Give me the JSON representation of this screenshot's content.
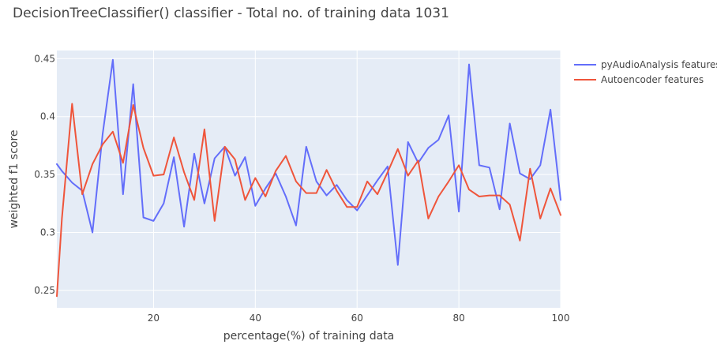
{
  "chart_data": {
    "type": "line",
    "title": "DecisionTreeClassifier() classifier - Total no. of training data 1031",
    "xlabel": "percentage(%) of training data",
    "ylabel": "weighted f1 score",
    "xlim": [
      1,
      100
    ],
    "ylim": [
      0.235,
      0.457
    ],
    "xticks": [
      20,
      40,
      60,
      80,
      100
    ],
    "yticks": [
      0.25,
      0.3,
      0.35,
      0.4,
      0.45
    ],
    "ytick_labels": [
      "0.25",
      "0.3",
      "0.35",
      "0.4",
      "0.45"
    ],
    "grid": true,
    "legend_position": "top-right, outside plot",
    "plot_background": "#e5ecf6",
    "series": [
      {
        "name": "pyAudioAnalysis features",
        "color": "#636efa",
        "x": [
          1,
          2,
          4,
          6,
          8,
          10,
          12,
          14,
          16,
          18,
          20,
          22,
          24,
          26,
          28,
          30,
          32,
          34,
          36,
          38,
          40,
          42,
          44,
          46,
          48,
          50,
          52,
          54,
          56,
          58,
          60,
          62,
          64,
          66,
          68,
          70,
          72,
          74,
          76,
          78,
          80,
          82,
          84,
          86,
          88,
          90,
          92,
          94,
          96,
          98,
          100
        ],
        "y": [
          0.359,
          0.353,
          0.343,
          0.336,
          0.3,
          0.385,
          0.449,
          0.333,
          0.428,
          0.313,
          0.31,
          0.325,
          0.365,
          0.305,
          0.368,
          0.325,
          0.364,
          0.374,
          0.349,
          0.365,
          0.323,
          0.338,
          0.351,
          0.331,
          0.306,
          0.374,
          0.344,
          0.332,
          0.341,
          0.328,
          0.319,
          0.332,
          0.345,
          0.357,
          0.272,
          0.378,
          0.36,
          0.373,
          0.38,
          0.401,
          0.318,
          0.445,
          0.358,
          0.356,
          0.32,
          0.394,
          0.351,
          0.346,
          0.358,
          0.406,
          0.328
        ]
      },
      {
        "name": "Autoencoder features",
        "color": "#ef553b",
        "x": [
          1,
          2,
          4,
          6,
          8,
          10,
          12,
          14,
          16,
          18,
          20,
          22,
          24,
          26,
          28,
          30,
          32,
          34,
          36,
          38,
          40,
          42,
          44,
          46,
          48,
          50,
          52,
          54,
          56,
          58,
          60,
          62,
          64,
          66,
          68,
          70,
          72,
          74,
          76,
          78,
          80,
          82,
          84,
          86,
          88,
          90,
          92,
          94,
          96,
          98,
          100
        ],
        "y": [
          0.245,
          0.312,
          0.411,
          0.333,
          0.359,
          0.376,
          0.387,
          0.36,
          0.41,
          0.373,
          0.349,
          0.35,
          0.382,
          0.352,
          0.328,
          0.389,
          0.31,
          0.374,
          0.363,
          0.328,
          0.347,
          0.331,
          0.353,
          0.366,
          0.344,
          0.334,
          0.334,
          0.354,
          0.336,
          0.322,
          0.322,
          0.344,
          0.333,
          0.352,
          0.372,
          0.349,
          0.362,
          0.312,
          0.331,
          0.344,
          0.358,
          0.337,
          0.331,
          0.332,
          0.332,
          0.324,
          0.293,
          0.355,
          0.312,
          0.338,
          0.315
        ]
      }
    ]
  }
}
